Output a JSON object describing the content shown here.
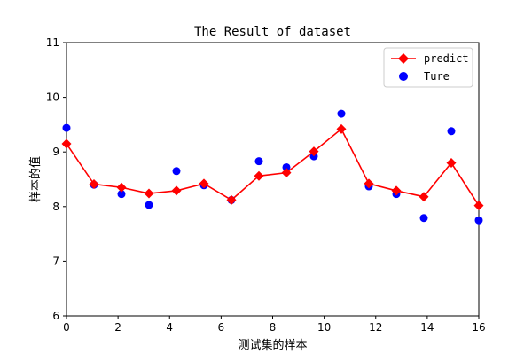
{
  "chart_data": {
    "type": "line",
    "title": "The Result of dataset",
    "xlabel": "测试集的样本",
    "ylabel": "样本的值",
    "xlim": [
      0,
      16
    ],
    "ylim": [
      6,
      11
    ],
    "xticks": [
      0,
      2,
      4,
      6,
      8,
      10,
      12,
      14,
      16
    ],
    "yticks": [
      6,
      7,
      8,
      9,
      10,
      11
    ],
    "grid": false,
    "legend_position": "top-right",
    "series": [
      {
        "name": "predict",
        "kind": "line-marker",
        "color": "#ff0000",
        "marker": "diamond",
        "x": [
          0,
          1.0667,
          2.1333,
          3.2,
          4.2667,
          5.3333,
          6.4,
          7.4667,
          8.5333,
          9.6,
          10.6667,
          11.7333,
          12.8,
          13.8667,
          14.9333,
          16
        ],
        "y": [
          9.15,
          8.41,
          8.35,
          8.24,
          8.29,
          8.42,
          8.12,
          8.56,
          8.62,
          9.01,
          9.42,
          8.42,
          8.29,
          8.18,
          8.8,
          8.02
        ]
      },
      {
        "name": "Ture",
        "kind": "scatter",
        "color": "#0000ff",
        "marker": "circle",
        "x": [
          0,
          1.0667,
          2.1333,
          3.2,
          4.2667,
          5.3333,
          6.4,
          7.4667,
          8.5333,
          9.6,
          10.6667,
          11.7333,
          12.8,
          13.8667,
          14.9333,
          16
        ],
        "y": [
          9.44,
          8.4,
          8.23,
          8.03,
          8.65,
          8.39,
          8.12,
          8.83,
          8.72,
          8.92,
          9.7,
          8.37,
          8.23,
          7.79,
          9.38,
          7.75
        ]
      }
    ]
  }
}
